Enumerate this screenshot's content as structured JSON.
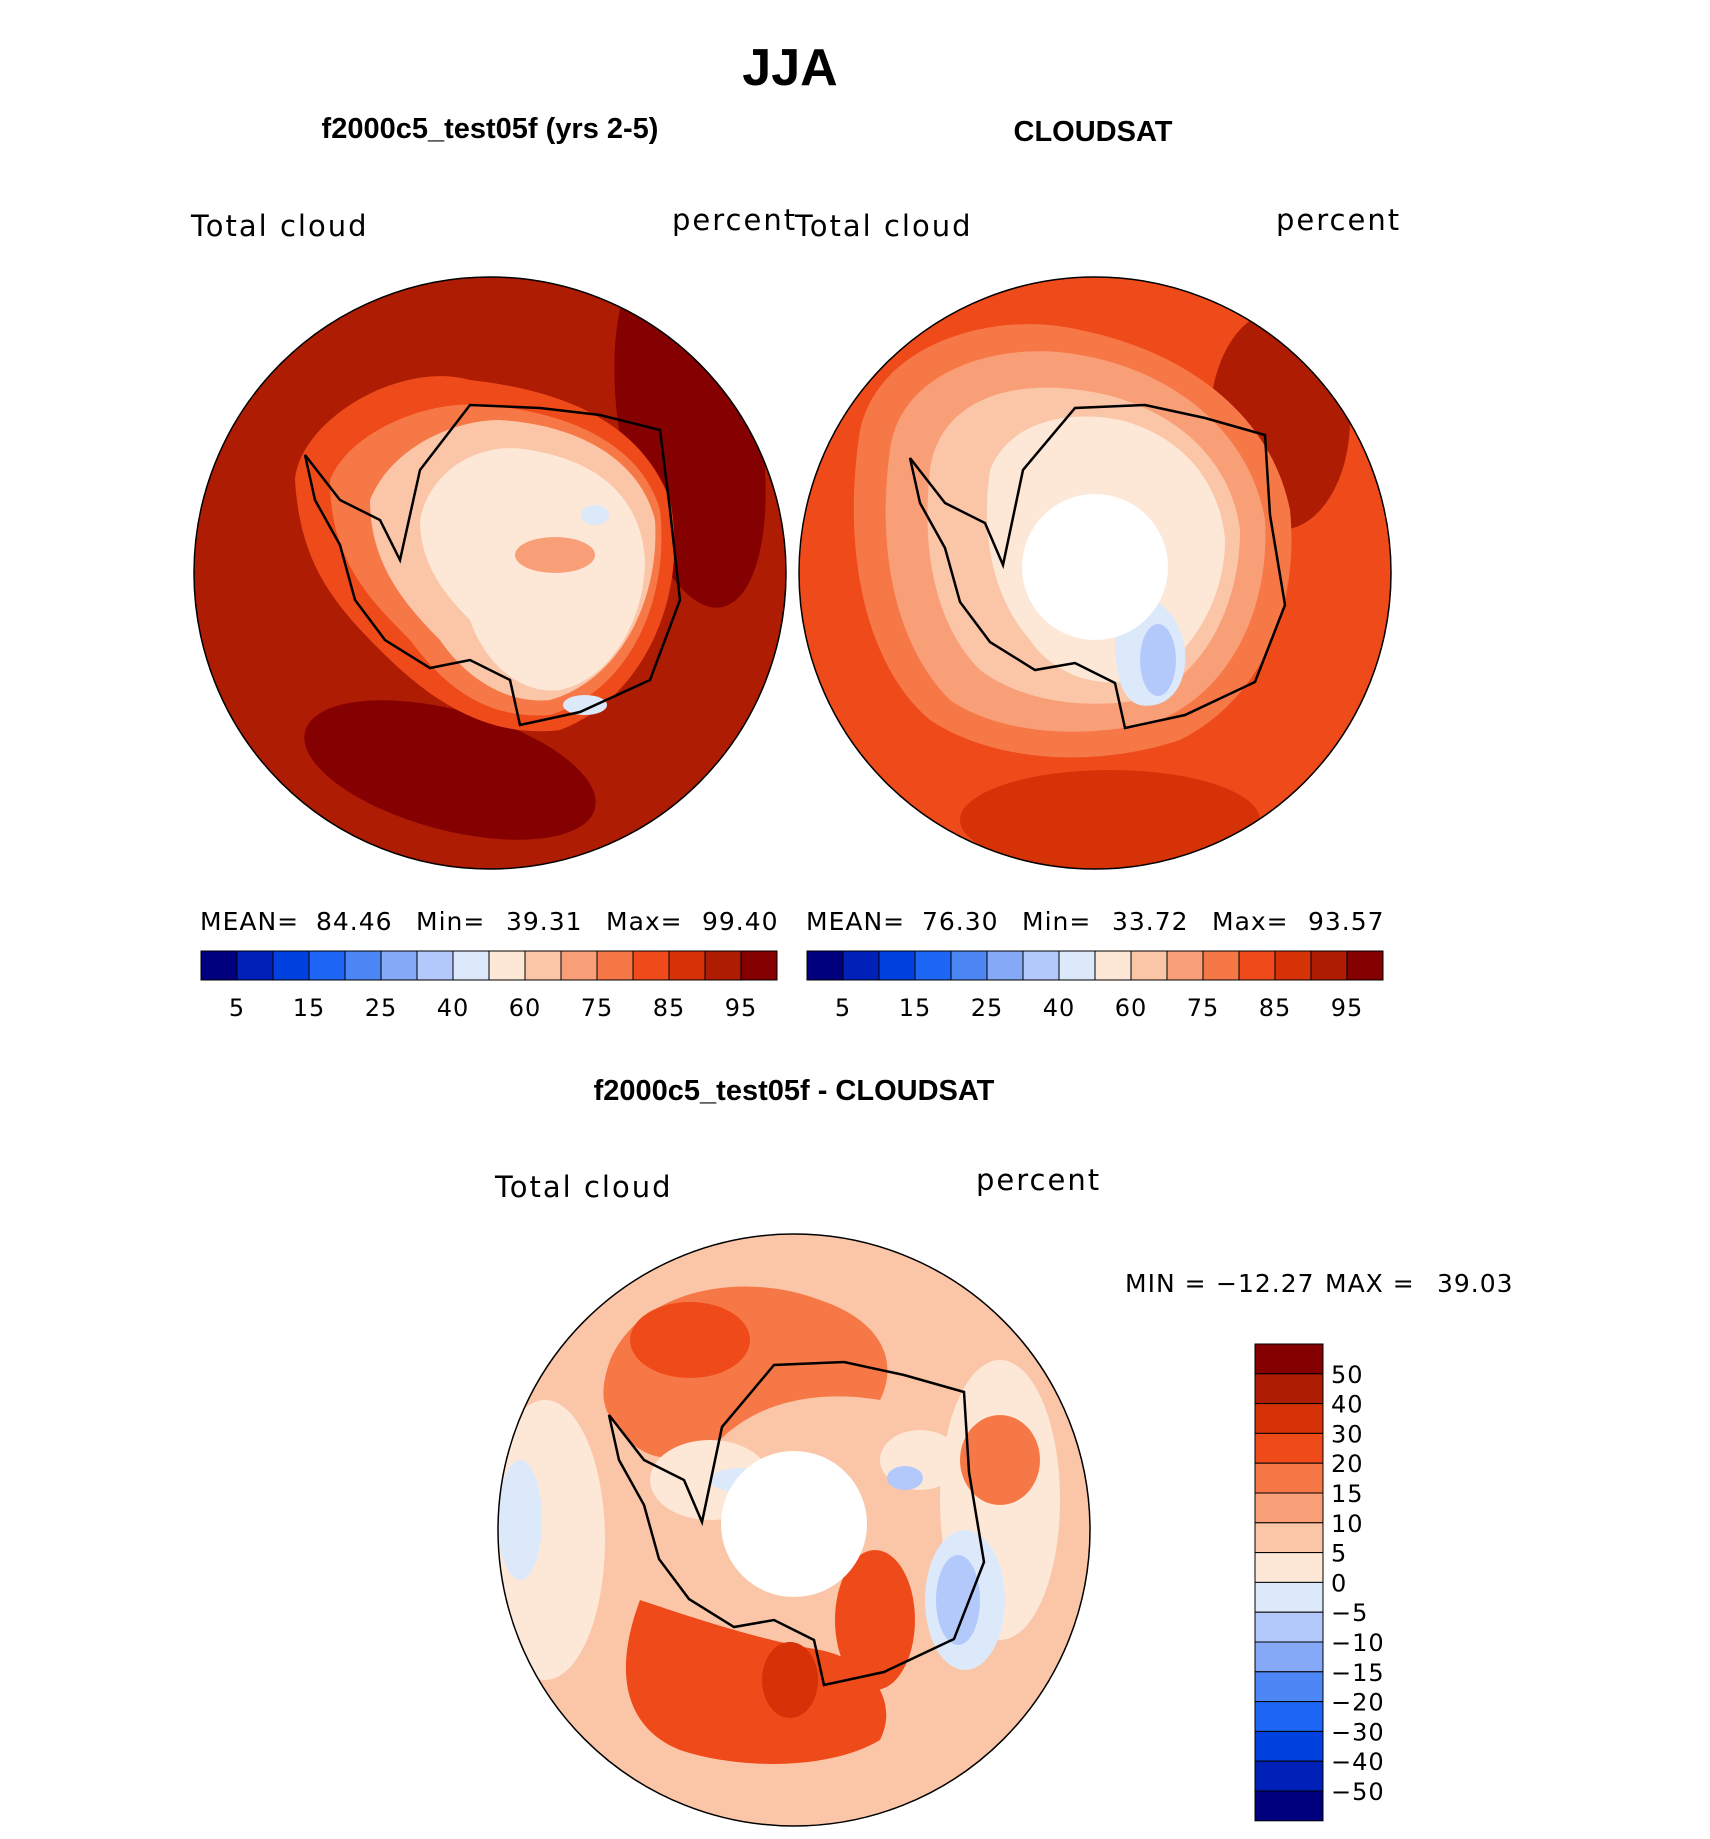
{
  "chart_data": {
    "type": "heatmap",
    "title": "JJA",
    "season": "JJA",
    "panels": [
      {
        "id": "model",
        "title": "f2000c5_test05f (yrs 2-5)",
        "variable": "Total cloud",
        "units": "percent",
        "projection": "south polar stereographic",
        "stats": {
          "mean_label": "MEAN=",
          "mean": "84.46",
          "min_label": "Min=",
          "min": "39.31",
          "max_label": "Max=",
          "max": "99.40"
        },
        "colorbar": {
          "orientation": "horizontal",
          "levels": [
            5,
            10,
            15,
            20,
            25,
            30,
            40,
            50,
            60,
            70,
            75,
            80,
            85,
            90,
            95
          ],
          "tick_labels": [
            "5",
            "15",
            "25",
            "40",
            "60",
            "75",
            "85",
            "95"
          ],
          "colors": [
            "#00007f",
            "#0021b8",
            "#0041e0",
            "#1e66f5",
            "#4d86f5",
            "#86a9f7",
            "#b4c9fb",
            "#dce9fb",
            "#fde8d8",
            "#fbc6a8",
            "#f99f78",
            "#f77847",
            "#ef4a1a",
            "#d63208",
            "#ae1c04",
            "#850000"
          ]
        }
      },
      {
        "id": "obs",
        "title": "CLOUDSAT",
        "variable": "Total cloud",
        "units": "percent",
        "projection": "south polar stereographic",
        "stats": {
          "mean_label": "MEAN=",
          "mean": "76.30",
          "min_label": "Min=",
          "min": "33.72",
          "max_label": "Max=",
          "max": "93.57"
        },
        "colorbar": {
          "orientation": "horizontal",
          "levels": [
            5,
            10,
            15,
            20,
            25,
            30,
            40,
            50,
            60,
            70,
            75,
            80,
            85,
            90,
            95
          ],
          "tick_labels": [
            "5",
            "15",
            "25",
            "40",
            "60",
            "75",
            "85",
            "95"
          ],
          "colors": [
            "#00007f",
            "#0021b8",
            "#0041e0",
            "#1e66f5",
            "#4d86f5",
            "#86a9f7",
            "#b4c9fb",
            "#dce9fb",
            "#fde8d8",
            "#fbc6a8",
            "#f99f78",
            "#f77847",
            "#ef4a1a",
            "#d63208",
            "#ae1c04",
            "#850000"
          ]
        }
      },
      {
        "id": "diff",
        "title": "f2000c5_test05f - CLOUDSAT",
        "variable": "Total cloud",
        "units": "percent",
        "projection": "south polar stereographic",
        "stats": {
          "min_label": "MIN =",
          "min": "−12.27",
          "max_label": "MAX =",
          "max": "39.03"
        },
        "colorbar": {
          "orientation": "vertical",
          "tick_labels": [
            "50",
            "40",
            "30",
            "20",
            "15",
            "10",
            "5",
            "0",
            "−5",
            "−10",
            "−15",
            "−20",
            "−30",
            "−40",
            "−50"
          ],
          "colors": [
            "#850000",
            "#ae1c04",
            "#d63208",
            "#ef4a1a",
            "#f77847",
            "#f99f78",
            "#fbc6a8",
            "#fde8d8",
            "#dce9fb",
            "#b4c9fb",
            "#86a9f7",
            "#4d86f5",
            "#1e66f5",
            "#0041e0",
            "#0021b8",
            "#00007f"
          ]
        }
      }
    ]
  }
}
